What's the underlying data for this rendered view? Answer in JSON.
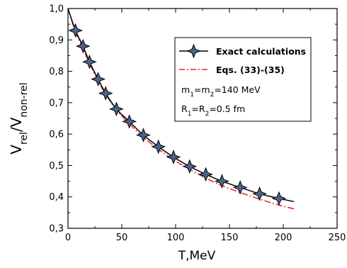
{
  "chart_data": {
    "type": "line",
    "xlabel": "T,MeV",
    "ylabel": {
      "main": "V",
      "sub1": "rel",
      "sep": "/V",
      "sub2": "non-rel"
    },
    "xlim": [
      0,
      250
    ],
    "ylim": [
      0.3,
      1.0
    ],
    "xticks": [
      0,
      50,
      100,
      150,
      200,
      250
    ],
    "yticks": [
      0.3,
      0.4,
      0.5,
      0.6,
      0.7,
      0.8,
      0.9,
      1.0
    ],
    "xtick_labels": [
      "0",
      "50",
      "100",
      "150",
      "200",
      "250"
    ],
    "ytick_labels": [
      "0,3",
      "0,4",
      "0,5",
      "0,6",
      "0,7",
      "0,8",
      "0,9",
      "1,0"
    ],
    "grid": false,
    "legend_position": "top-right",
    "series": [
      {
        "name": "Exact calculations",
        "style": "line-with-star-markers",
        "color": "#000000",
        "marker_fill": "#4a6488",
        "x": [
          0,
          7,
          14,
          20,
          28,
          35,
          45,
          57,
          70,
          84,
          98,
          113,
          128,
          143,
          160,
          178,
          196,
          210
        ],
        "y": [
          1.0,
          0.93,
          0.88,
          0.83,
          0.775,
          0.73,
          0.68,
          0.64,
          0.597,
          0.56,
          0.527,
          0.497,
          0.472,
          0.45,
          0.43,
          0.41,
          0.395,
          0.385
        ],
        "marker_indices": [
          1,
          2,
          3,
          4,
          5,
          6,
          7,
          8,
          9,
          10,
          11,
          12,
          13,
          14,
          15,
          16
        ]
      },
      {
        "name": "Eqs. (33)-(35)",
        "style": "dash-dot",
        "color": "#e8201c",
        "x": [
          0,
          7,
          14,
          20,
          28,
          35,
          45,
          57,
          70,
          84,
          98,
          113,
          128,
          143,
          160,
          178,
          196,
          210
        ],
        "y": [
          1.0,
          0.925,
          0.872,
          0.825,
          0.77,
          0.727,
          0.677,
          0.633,
          0.59,
          0.552,
          0.518,
          0.488,
          0.46,
          0.436,
          0.414,
          0.393,
          0.374,
          0.362
        ]
      }
    ],
    "annotations": [
      "m1=m2=140 MeV",
      "R1=R2=0.5 fm"
    ]
  },
  "legend": {
    "exact_label": "Exact calculations",
    "eqs_label": "Eqs. (33)-(35)",
    "mass": {
      "m": "m",
      "s1": "1",
      "eq1": "=m",
      "s2": "2",
      "rest": "=140 MeV"
    },
    "radius": {
      "r": "R",
      "s1": "1",
      "eq1": "=R",
      "s2": "2",
      "rest": "=0.5 fm"
    }
  }
}
